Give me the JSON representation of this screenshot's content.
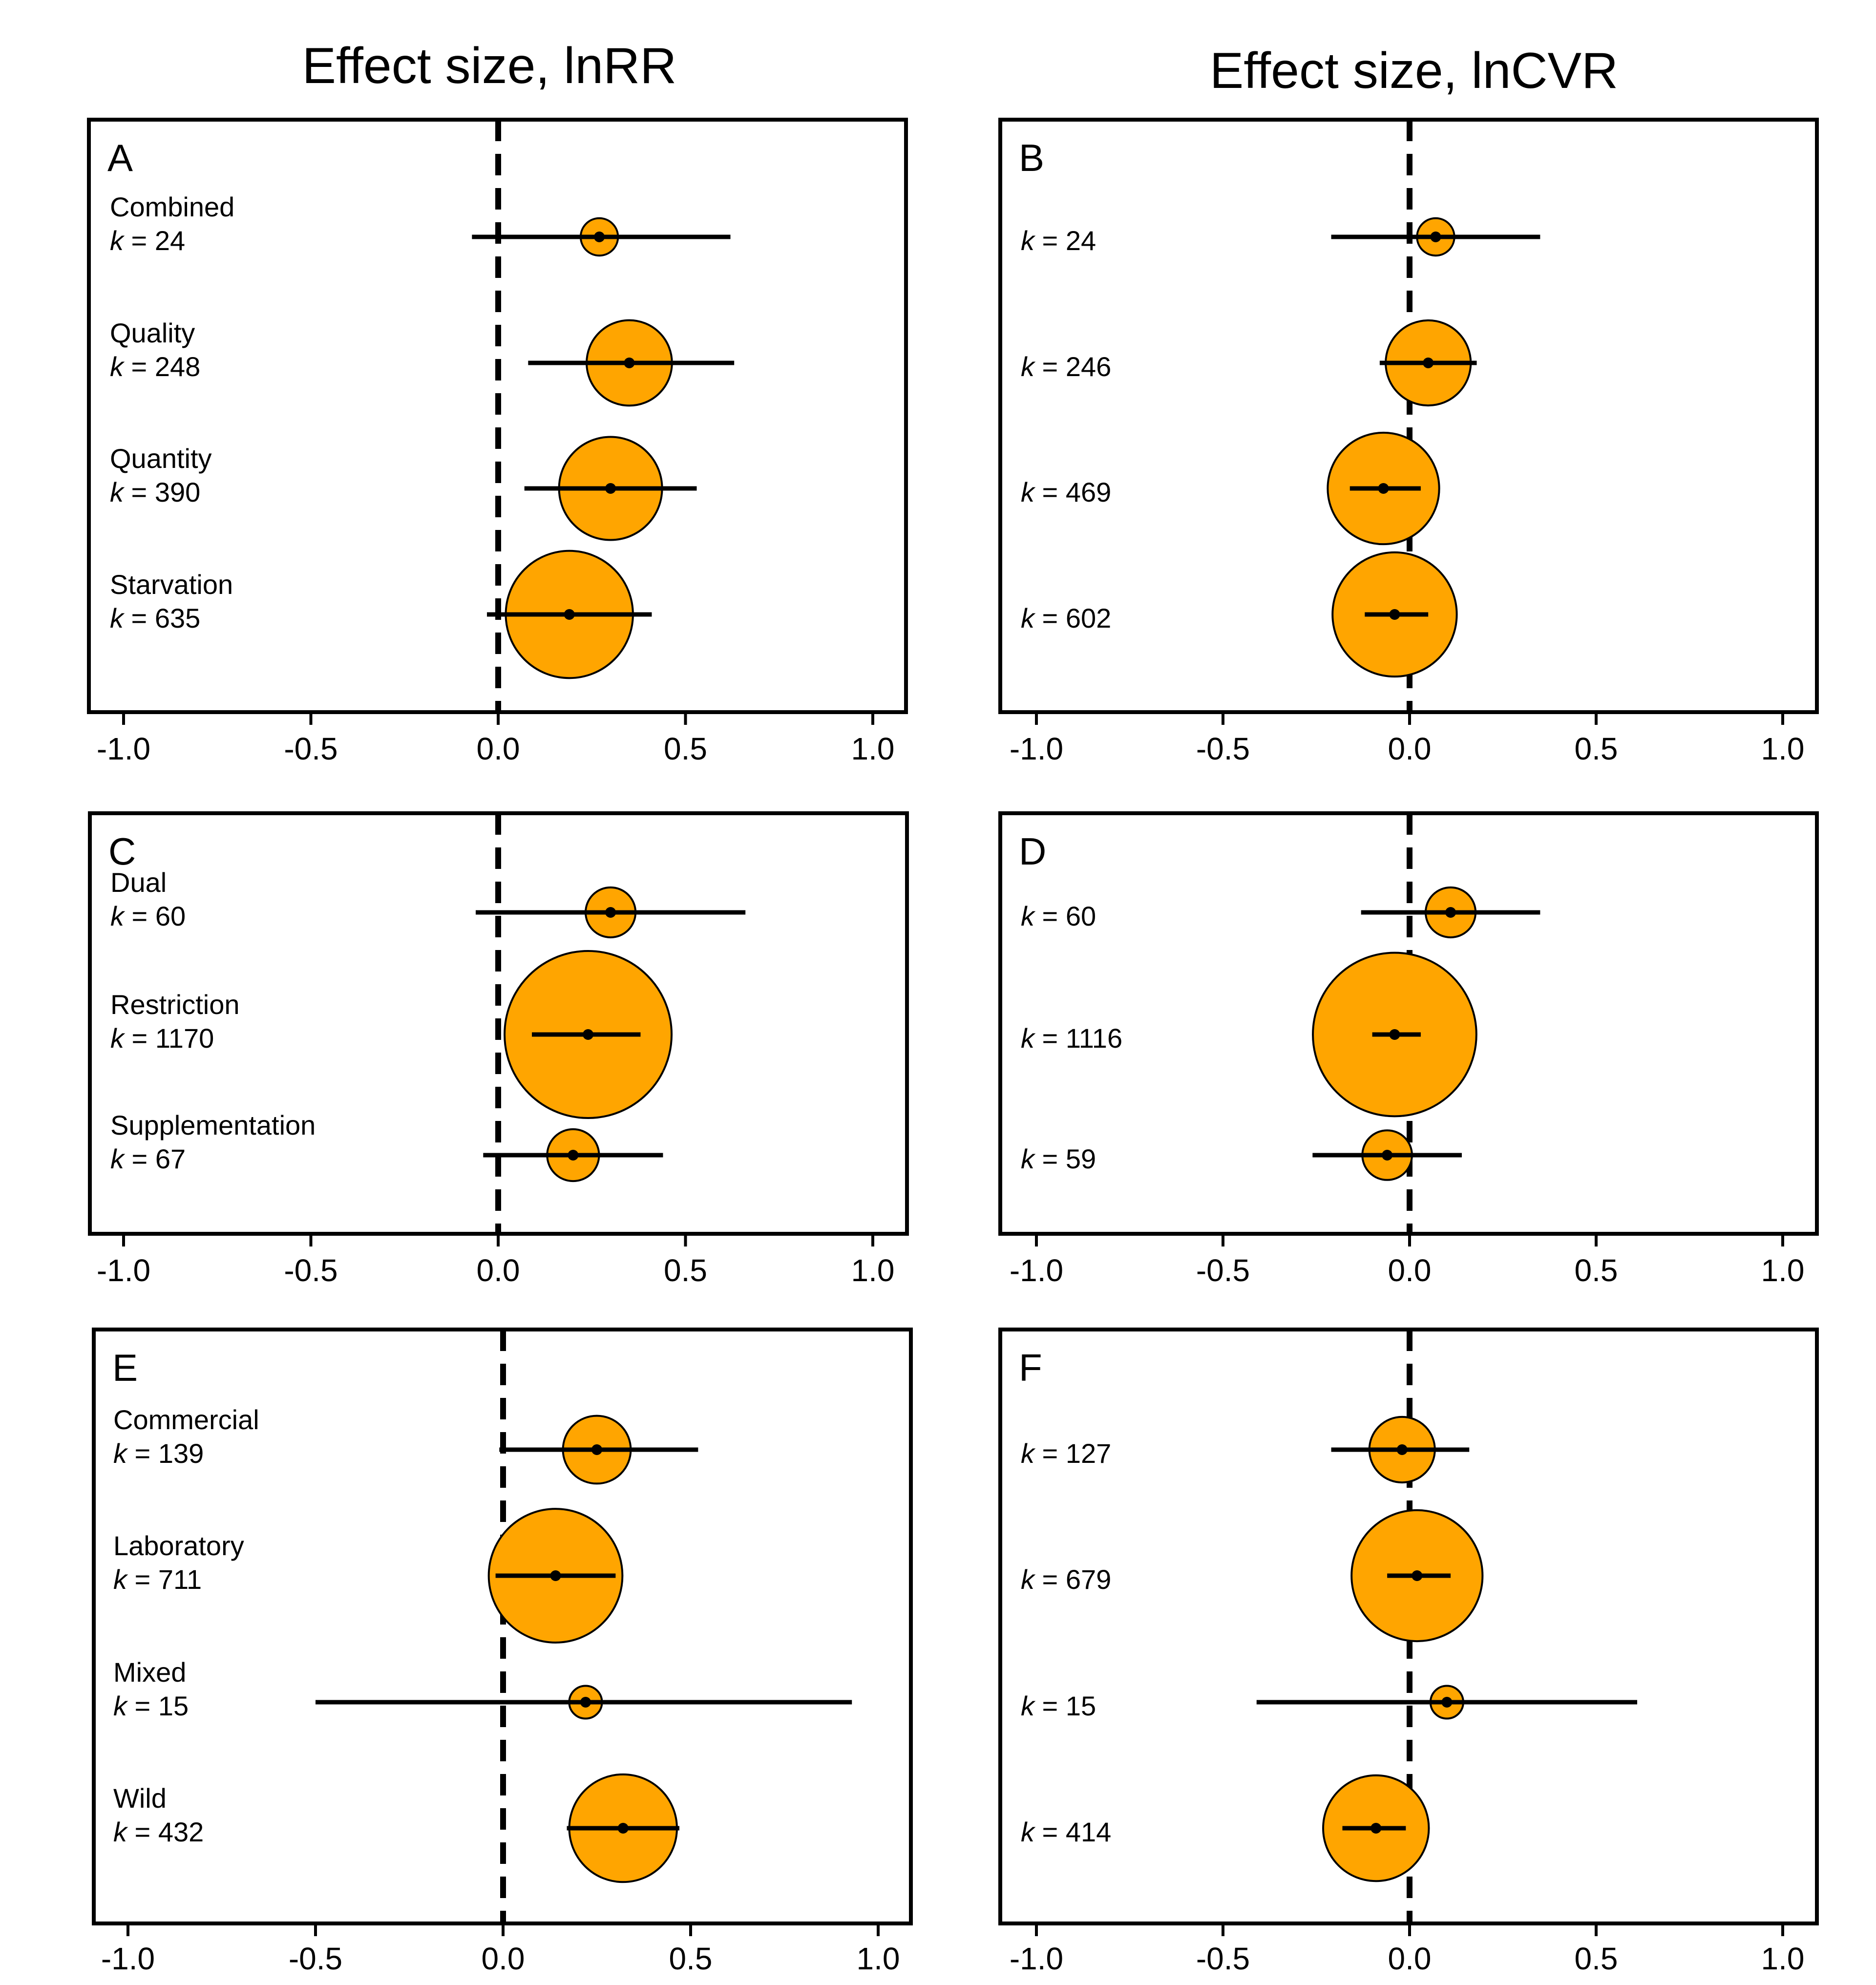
{
  "column_titles": [
    "Effect size, lnRR",
    "Effect size, lnCVR"
  ],
  "chart_data": [
    {
      "type": "scatter",
      "subtype": "forest-plot",
      "panel": "A",
      "column": 0,
      "xlim": [
        -1.1,
        1.1
      ],
      "xticks": [
        -1.0,
        -0.5,
        0.0,
        0.5,
        1.0
      ],
      "tick_labels": [
        "-1.0",
        "-0.5",
        "0.0",
        "0.5",
        "1.0"
      ],
      "reference_line": 0,
      "rows": [
        {
          "label": "Combined",
          "k_prefix": "k",
          "k_text": " = 24",
          "k": 24,
          "estimate": 0.27,
          "ci_low": -0.07,
          "ci_high": 0.62
        },
        {
          "label": "Quality",
          "k_prefix": "k",
          "k_text": " = 248",
          "k": 248,
          "estimate": 0.35,
          "ci_low": 0.08,
          "ci_high": 0.63
        },
        {
          "label": "Quantity",
          "k_prefix": "k",
          "k_text": " = 390",
          "k": 390,
          "estimate": 0.3,
          "ci_low": 0.07,
          "ci_high": 0.53
        },
        {
          "label": "Starvation",
          "k_prefix": "k",
          "k_text": " = 635",
          "k": 635,
          "estimate": 0.19,
          "ci_low": -0.03,
          "ci_high": 0.41
        }
      ]
    },
    {
      "type": "scatter",
      "subtype": "forest-plot",
      "panel": "B",
      "column": 1,
      "xlim": [
        -1.1,
        1.1
      ],
      "xticks": [
        -1.0,
        -0.5,
        0.0,
        0.5,
        1.0
      ],
      "tick_labels": [
        "-1.0",
        "-0.5",
        "0.0",
        "0.5",
        "1.0"
      ],
      "reference_line": 0,
      "rows": [
        {
          "label": "",
          "k_prefix": "k",
          "k_text": " = 24",
          "k": 24,
          "estimate": 0.07,
          "ci_low": -0.21,
          "ci_high": 0.35
        },
        {
          "label": "",
          "k_prefix": "k",
          "k_text": " = 246",
          "k": 246,
          "estimate": 0.05,
          "ci_low": -0.08,
          "ci_high": 0.18
        },
        {
          "label": "",
          "k_prefix": "k",
          "k_text": " = 469",
          "k": 469,
          "estimate": -0.07,
          "ci_low": -0.16,
          "ci_high": 0.03
        },
        {
          "label": "",
          "k_prefix": "k",
          "k_text": " = 602",
          "k": 602,
          "estimate": -0.04,
          "ci_low": -0.12,
          "ci_high": 0.05
        }
      ]
    },
    {
      "type": "scatter",
      "subtype": "forest-plot",
      "panel": "C",
      "column": 0,
      "xlim": [
        -1.1,
        1.1
      ],
      "xticks": [
        -1.0,
        -0.5,
        0.0,
        0.5,
        1.0
      ],
      "tick_labels": [
        "-1.0",
        "-0.5",
        "0.0",
        "0.5",
        "1.0"
      ],
      "reference_line": 0,
      "rows": [
        {
          "label": "Dual",
          "k_prefix": "k",
          "k_text": " = 60",
          "k": 60,
          "estimate": 0.3,
          "ci_low": -0.06,
          "ci_high": 0.66
        },
        {
          "label": "Restriction",
          "k_prefix": "k",
          "k_text": " = 1170",
          "k": 1170,
          "estimate": 0.24,
          "ci_low": 0.09,
          "ci_high": 0.38
        },
        {
          "label": "Supplementation",
          "k_prefix": "k",
          "k_text": " = 67",
          "k": 67,
          "estimate": 0.2,
          "ci_low": -0.04,
          "ci_high": 0.44
        }
      ]
    },
    {
      "type": "scatter",
      "subtype": "forest-plot",
      "panel": "D",
      "column": 1,
      "xlim": [
        -1.1,
        1.1
      ],
      "xticks": [
        -1.0,
        -0.5,
        0.0,
        0.5,
        1.0
      ],
      "tick_labels": [
        "-1.0",
        "-0.5",
        "0.0",
        "0.5",
        "1.0"
      ],
      "reference_line": 0,
      "rows": [
        {
          "label": "",
          "k_prefix": "k",
          "k_text": " = 60",
          "k": 60,
          "estimate": 0.11,
          "ci_low": -0.13,
          "ci_high": 0.35
        },
        {
          "label": "",
          "k_prefix": "k",
          "k_text": " = 1116",
          "k": 1116,
          "estimate": -0.04,
          "ci_low": -0.1,
          "ci_high": 0.03
        },
        {
          "label": "",
          "k_prefix": "k",
          "k_text": " = 59",
          "k": 59,
          "estimate": -0.06,
          "ci_low": -0.26,
          "ci_high": 0.14
        }
      ]
    },
    {
      "type": "scatter",
      "subtype": "forest-plot",
      "panel": "E",
      "column": 0,
      "xlim": [
        -1.1,
        1.1
      ],
      "xticks": [
        -1.0,
        -0.5,
        0.0,
        0.5,
        1.0
      ],
      "tick_labels": [
        "-1.0",
        "-0.5",
        "0.0",
        "0.5",
        "1.0"
      ],
      "reference_line": 0,
      "rows": [
        {
          "label": "Commercial",
          "k_prefix": "k",
          "k_text": " = 139",
          "k": 139,
          "estimate": 0.25,
          "ci_low": -0.01,
          "ci_high": 0.52
        },
        {
          "label": "Laboratory",
          "k_prefix": "k",
          "k_text": " = 711",
          "k": 711,
          "estimate": 0.14,
          "ci_low": -0.02,
          "ci_high": 0.3
        },
        {
          "label": "Mixed",
          "k_prefix": "k",
          "k_text": " = 15",
          "k": 15,
          "estimate": 0.22,
          "ci_low": -0.5,
          "ci_high": 0.93
        },
        {
          "label": "Wild",
          "k_prefix": "k",
          "k_text": " = 432",
          "k": 432,
          "estimate": 0.32,
          "ci_low": 0.17,
          "ci_high": 0.47
        }
      ]
    },
    {
      "type": "scatter",
      "subtype": "forest-plot",
      "panel": "F",
      "column": 1,
      "xlim": [
        -1.1,
        1.1
      ],
      "xticks": [
        -1.0,
        -0.5,
        0.0,
        0.5,
        1.0
      ],
      "tick_labels": [
        "-1.0",
        "-0.5",
        "0.0",
        "0.5",
        "1.0"
      ],
      "reference_line": 0,
      "rows": [
        {
          "label": "",
          "k_prefix": "k",
          "k_text": " = 127",
          "k": 127,
          "estimate": -0.02,
          "ci_low": -0.21,
          "ci_high": 0.16
        },
        {
          "label": "",
          "k_prefix": "k",
          "k_text": " = 679",
          "k": 679,
          "estimate": 0.02,
          "ci_low": -0.06,
          "ci_high": 0.11
        },
        {
          "label": "",
          "k_prefix": "k",
          "k_text": " = 15",
          "k": 15,
          "estimate": 0.1,
          "ci_low": -0.41,
          "ci_high": 0.61
        },
        {
          "label": "",
          "k_prefix": "k",
          "k_text": " = 414",
          "k": 414,
          "estimate": -0.09,
          "ci_low": -0.18,
          "ci_high": -0.01
        }
      ]
    }
  ],
  "colors": {
    "marker_fill": "#FFA500",
    "marker_stroke": "#000000",
    "line": "#000000"
  }
}
